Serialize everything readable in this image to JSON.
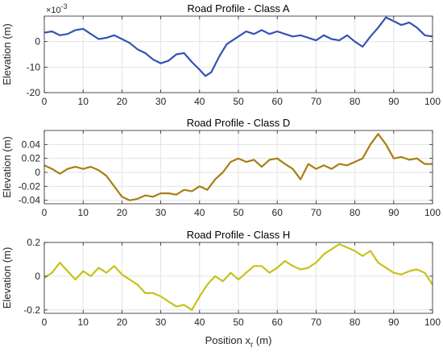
{
  "colors": {
    "background": "#ffffff",
    "axis": "#262626",
    "grid": "#e3e3e3"
  },
  "chart_data": [
    {
      "type": "line",
      "title": "Road Profile - Class A",
      "xlabel": "",
      "ylabel": "Elevation (m)",
      "yscale_label": "×10",
      "yscale_exponent": "-3",
      "xlim": [
        0,
        100
      ],
      "ylim": [
        -20,
        10
      ],
      "grid": true,
      "x_ticks": [
        0,
        10,
        20,
        30,
        40,
        50,
        60,
        70,
        80,
        90,
        100
      ],
      "y_ticks": [
        -20,
        -10,
        0
      ],
      "y_tick_labels": [
        "-20",
        "-10",
        "0"
      ],
      "series": [
        {
          "color": "#3452b5",
          "x": [
            0,
            2,
            4,
            6,
            8,
            10,
            12,
            14,
            16,
            18,
            20,
            22,
            24,
            26,
            28,
            30,
            32,
            34,
            36,
            38,
            40,
            41.5,
            43,
            45,
            47,
            50,
            52,
            54,
            56,
            58,
            60,
            62,
            64,
            66,
            68,
            70,
            72,
            74,
            76,
            78,
            80,
            82,
            84,
            86,
            88,
            90,
            92,
            94,
            96,
            98,
            100
          ],
          "y": [
            3.5,
            4,
            2.5,
            3,
            4.5,
            5,
            3,
            1,
            1.5,
            2.5,
            1,
            -0.5,
            -3,
            -4.5,
            -7,
            -8.5,
            -7.5,
            -5,
            -4.5,
            -8,
            -11,
            -13.5,
            -12,
            -6,
            -1,
            2,
            4,
            3,
            4.5,
            3,
            4,
            3,
            2,
            2.5,
            1.5,
            0.5,
            2.5,
            1,
            0.5,
            2.5,
            0,
            -2,
            2,
            5.5,
            9.5,
            8,
            6.5,
            7.5,
            5.5,
            2.5,
            2
          ]
        }
      ]
    },
    {
      "type": "line",
      "title": "Road Profile - Class D",
      "xlabel": "",
      "ylabel": "Elevation (m)",
      "xlim": [
        0,
        100
      ],
      "ylim": [
        -0.045,
        0.06
      ],
      "grid": true,
      "x_ticks": [
        0,
        10,
        20,
        30,
        40,
        50,
        60,
        70,
        80,
        90,
        100
      ],
      "y_ticks": [
        -0.04,
        -0.02,
        0,
        0.02,
        0.04
      ],
      "y_tick_labels": [
        "-0.04",
        "-0.02",
        "0",
        "0.02",
        "0.04"
      ],
      "series": [
        {
          "color": "#a97e14",
          "x": [
            0,
            2,
            4,
            6,
            8,
            10,
            12,
            14,
            16,
            18,
            20,
            22,
            24,
            26,
            28,
            30,
            32,
            34,
            36,
            38,
            40,
            42,
            44,
            46,
            48,
            50,
            52,
            54,
            56,
            58,
            60,
            62,
            64,
            66,
            68,
            70,
            72,
            74,
            76,
            78,
            80,
            82,
            84,
            86,
            88,
            90,
            92,
            94,
            96,
            98,
            100
          ],
          "y": [
            0.01,
            0.005,
            -0.002,
            0.005,
            0.008,
            0.005,
            0.008,
            0.003,
            -0.005,
            -0.02,
            -0.035,
            -0.04,
            -0.038,
            -0.033,
            -0.035,
            -0.03,
            -0.03,
            -0.032,
            -0.025,
            -0.027,
            -0.02,
            -0.025,
            -0.01,
            0,
            0.015,
            0.02,
            0.015,
            0.018,
            0.008,
            0.018,
            0.02,
            0.012,
            0.005,
            -0.01,
            0.012,
            0.005,
            0.01,
            0.005,
            0.012,
            0.01,
            0.015,
            0.02,
            0.04,
            0.055,
            0.04,
            0.02,
            0.022,
            0.018,
            0.02,
            0.012,
            0.012
          ]
        }
      ]
    },
    {
      "type": "line",
      "title": "Road Profile - Class H",
      "xlabel": "Position x_r (m)",
      "xlabel_main": "Position x",
      "xlabel_sub": "r",
      "xlabel_unit": "(m)",
      "ylabel": "Elevation (m)",
      "xlim": [
        0,
        100
      ],
      "ylim": [
        -0.22,
        0.2
      ],
      "grid": true,
      "x_ticks": [
        0,
        10,
        20,
        30,
        40,
        50,
        60,
        70,
        80,
        90,
        100
      ],
      "y_ticks": [
        -0.2,
        0,
        0.2
      ],
      "y_tick_labels": [
        "-0.2",
        "0",
        "0.2"
      ],
      "series": [
        {
          "color": "#c8c21a",
          "x": [
            0,
            2,
            4,
            6,
            8,
            10,
            12,
            14,
            16,
            18,
            20,
            22,
            24,
            26,
            28,
            30,
            32,
            34,
            36,
            38,
            40,
            42,
            44,
            46,
            48,
            50,
            52,
            54,
            56,
            58,
            60,
            62,
            64,
            66,
            68,
            70,
            72,
            74,
            76,
            78,
            80,
            82,
            84,
            86,
            88,
            90,
            92,
            94,
            96,
            98,
            100
          ],
          "y": [
            -0.01,
            0.02,
            0.08,
            0.03,
            -0.02,
            0.03,
            0,
            0.05,
            0.02,
            0.06,
            0.01,
            -0.02,
            -0.05,
            -0.1,
            -0.1,
            -0.12,
            -0.15,
            -0.18,
            -0.17,
            -0.2,
            -0.12,
            -0.05,
            0,
            -0.03,
            0.02,
            -0.02,
            0.02,
            0.06,
            0.06,
            0.02,
            0.05,
            0.09,
            0.06,
            0.04,
            0.05,
            0.08,
            0.13,
            0.16,
            0.19,
            0.17,
            0.15,
            0.12,
            0.15,
            0.08,
            0.05,
            0.02,
            0.01,
            0.03,
            0.04,
            0.02,
            -0.05
          ]
        }
      ]
    }
  ]
}
